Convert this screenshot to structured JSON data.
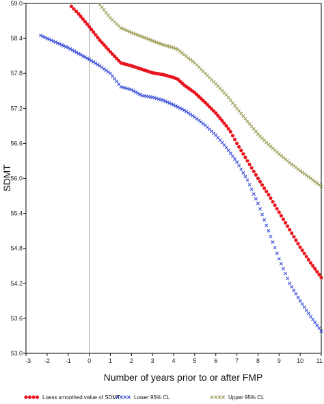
{
  "chart_data": {
    "type": "line",
    "title": "",
    "xlabel": "Number of years prior to or after FMP",
    "ylabel": "SDMT",
    "xlim": [
      -3,
      11
    ],
    "ylim": [
      53.0,
      59.0
    ],
    "xticks": [
      -3,
      -2,
      -1,
      0,
      1,
      2,
      3,
      4,
      5,
      6,
      7,
      8,
      9,
      10,
      11
    ],
    "yticks": [
      53.0,
      53.6,
      54.2,
      54.8,
      55.4,
      56.0,
      56.6,
      57.2,
      57.8,
      58.4,
      59.0
    ],
    "xtick_labels": [
      "-3",
      "-2",
      "-1",
      "0",
      "1",
      "2",
      "3",
      "4",
      "5",
      "6",
      "7",
      "8",
      "9",
      "10",
      "11"
    ],
    "ytick_labels": [
      "53.0",
      "53.6",
      "54.2",
      "54.8",
      "55.4",
      "56.0",
      "56.6",
      "57.2",
      "57.8",
      "58.4",
      "59.0"
    ],
    "reference_line_x": 0,
    "grid": false,
    "legend_position": "bottom",
    "series": [
      {
        "name": "Loess smoothed value of SDMT",
        "color": "#e8141e",
        "marker": "dot",
        "x": [
          -0.85,
          -0.5,
          0,
          0.5,
          1.0,
          1.5,
          2.0,
          2.5,
          3.0,
          3.5,
          4.0,
          4.2,
          4.5,
          5.0,
          5.5,
          6.0,
          6.5,
          6.7,
          7.0,
          7.5,
          8.0,
          8.5,
          9.0,
          9.5,
          10.0,
          10.5,
          11.0
        ],
        "y": [
          58.95,
          58.82,
          58.6,
          58.37,
          58.17,
          57.98,
          57.93,
          57.87,
          57.81,
          57.78,
          57.73,
          57.7,
          57.6,
          57.47,
          57.3,
          57.12,
          56.9,
          56.8,
          56.6,
          56.3,
          56.0,
          55.72,
          55.42,
          55.12,
          54.82,
          54.55,
          54.3
        ]
      },
      {
        "name": "Lower 95% CL",
        "color": "#3b4fd8",
        "marker": "x",
        "x": [
          -2.3,
          -2.0,
          -1.5,
          -1.0,
          -0.5,
          0,
          0.5,
          1.0,
          1.5,
          2.0,
          2.5,
          3.0,
          3.5,
          4.0,
          4.5,
          5.0,
          5.5,
          6.0,
          6.5,
          7.0,
          7.5,
          8.0,
          8.5,
          9.0,
          9.5,
          10.0,
          10.5,
          11.0
        ],
        "y": [
          58.45,
          58.4,
          58.32,
          58.24,
          58.14,
          58.04,
          57.93,
          57.8,
          57.57,
          57.52,
          57.42,
          57.39,
          57.34,
          57.26,
          57.17,
          57.05,
          56.91,
          56.74,
          56.53,
          56.28,
          55.97,
          55.57,
          55.1,
          54.62,
          54.2,
          53.9,
          53.63,
          53.38
        ]
      },
      {
        "name": "Upper 95% CL",
        "color": "#9a9a52",
        "marker": "x",
        "x": [
          0.5,
          1.0,
          1.5,
          2.0,
          2.5,
          3.0,
          3.5,
          4.0,
          4.2,
          4.5,
          5.0,
          5.5,
          6.0,
          6.5,
          7.0,
          7.5,
          8.0,
          8.5,
          9.0,
          9.5,
          10.0,
          10.5,
          11.0
        ],
        "y": [
          58.98,
          58.75,
          58.58,
          58.5,
          58.43,
          58.36,
          58.29,
          58.24,
          58.21,
          58.12,
          57.98,
          57.8,
          57.62,
          57.43,
          57.2,
          56.98,
          56.76,
          56.58,
          56.42,
          56.27,
          56.13,
          56.0,
          55.86
        ]
      }
    ]
  }
}
